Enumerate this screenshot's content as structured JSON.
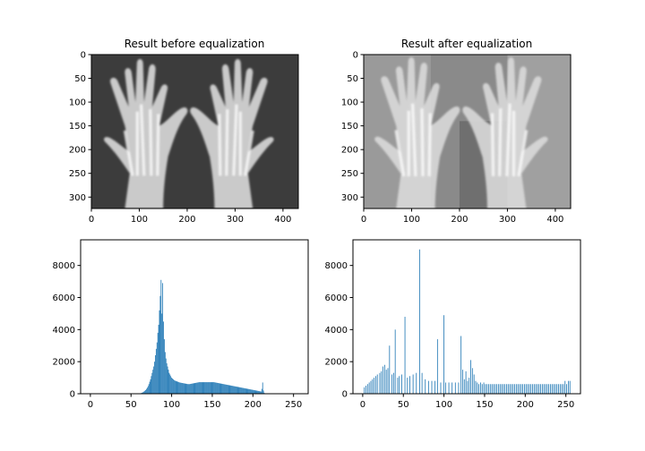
{
  "chart_data": [
    {
      "type": "image",
      "title": "Result before equalization",
      "xticks": [
        0,
        100,
        200,
        300,
        400
      ],
      "yticks": [
        0,
        50,
        100,
        150,
        200,
        250,
        300
      ],
      "xlim": [
        0,
        432
      ],
      "ylim": [
        324,
        0
      ],
      "image_content": "grayscale x-ray of two hands, low contrast"
    },
    {
      "type": "image",
      "title": "Result after equalization",
      "xticks": [
        0,
        100,
        200,
        300,
        400
      ],
      "yticks": [
        0,
        50,
        100,
        150,
        200,
        250,
        300
      ],
      "xlim": [
        0,
        432
      ],
      "ylim": [
        324,
        0
      ],
      "image_content": "grayscale x-ray of two hands, histogram-equalized, high contrast"
    },
    {
      "type": "bar",
      "title": "",
      "xlabel": "",
      "ylabel": "",
      "xticks": [
        0,
        50,
        100,
        150,
        200,
        250
      ],
      "yticks": [
        0,
        2000,
        4000,
        6000,
        8000
      ],
      "xlim": [
        -12,
        268
      ],
      "ylim": [
        0,
        9600
      ],
      "color": "#1f77b4",
      "start_bin": 60,
      "values": [
        10,
        20,
        30,
        50,
        70,
        100,
        140,
        180,
        230,
        300,
        380,
        480,
        600,
        750,
        900,
        1100,
        1300,
        1500,
        1700,
        2000,
        2400,
        2800,
        3200,
        3800,
        4300,
        5200,
        6100,
        7100,
        5000,
        6900,
        4500,
        3400,
        2600,
        2200,
        1900,
        1700,
        1500,
        1300,
        1200,
        1100,
        1000,
        950,
        900,
        850,
        820,
        800,
        780,
        760,
        740,
        720,
        700,
        690,
        680,
        670,
        660,
        650,
        640,
        630,
        620,
        610,
        600,
        600,
        600,
        610,
        620,
        630,
        640,
        650,
        660,
        670,
        680,
        690,
        700,
        710,
        720,
        720,
        720,
        720,
        720,
        720,
        720,
        720,
        720,
        720,
        720,
        720,
        720,
        720,
        720,
        720,
        720,
        720,
        720,
        710,
        700,
        690,
        680,
        670,
        660,
        650,
        640,
        630,
        620,
        610,
        600,
        590,
        580,
        570,
        560,
        550,
        540,
        530,
        520,
        510,
        500,
        490,
        480,
        470,
        460,
        450,
        440,
        430,
        420,
        410,
        400,
        390,
        380,
        370,
        360,
        350,
        340,
        330,
        320,
        310,
        300,
        290,
        280,
        270,
        260,
        250,
        240,
        230,
        220,
        210,
        200,
        190,
        180,
        170,
        160,
        150,
        140,
        300,
        700,
        200,
        50
      ]
    },
    {
      "type": "bar",
      "title": "",
      "xlabel": "",
      "ylabel": "",
      "xticks": [
        0,
        50,
        100,
        150,
        200,
        250
      ],
      "yticks": [
        0,
        2000,
        4000,
        6000,
        8000
      ],
      "xlim": [
        -12,
        268
      ],
      "ylim": [
        0,
        9600
      ],
      "color": "#1f77b4",
      "bars": [
        [
          2,
          400
        ],
        [
          4,
          500
        ],
        [
          6,
          600
        ],
        [
          8,
          700
        ],
        [
          10,
          800
        ],
        [
          12,
          900
        ],
        [
          14,
          1000
        ],
        [
          16,
          1100
        ],
        [
          18,
          1200
        ],
        [
          21,
          1300
        ],
        [
          23,
          1400
        ],
        [
          25,
          1700
        ],
        [
          27,
          1800
        ],
        [
          29,
          1500
        ],
        [
          31,
          1600
        ],
        [
          33,
          3000
        ],
        [
          36,
          1200
        ],
        [
          38,
          1300
        ],
        [
          40,
          4000
        ],
        [
          43,
          1000
        ],
        [
          45,
          1100
        ],
        [
          48,
          1200
        ],
        [
          52,
          4800
        ],
        [
          55,
          1000
        ],
        [
          58,
          1100
        ],
        [
          62,
          1200
        ],
        [
          66,
          1300
        ],
        [
          70,
          9000
        ],
        [
          73,
          1300
        ],
        [
          77,
          900
        ],
        [
          81,
          800
        ],
        [
          85,
          800
        ],
        [
          89,
          800
        ],
        [
          92,
          3400
        ],
        [
          96,
          700
        ],
        [
          100,
          4900
        ],
        [
          102,
          700
        ],
        [
          106,
          700
        ],
        [
          110,
          700
        ],
        [
          114,
          700
        ],
        [
          118,
          700
        ],
        [
          121,
          3600
        ],
        [
          123,
          1500
        ],
        [
          125,
          900
        ],
        [
          127,
          1400
        ],
        [
          129,
          800
        ],
        [
          131,
          1000
        ],
        [
          133,
          2100
        ],
        [
          135,
          1600
        ],
        [
          137,
          1200
        ],
        [
          139,
          800
        ],
        [
          141,
          700
        ],
        [
          143,
          600
        ],
        [
          145,
          700
        ],
        [
          147,
          600
        ],
        [
          149,
          700
        ],
        [
          151,
          600
        ],
        [
          153,
          600
        ],
        [
          155,
          600
        ],
        [
          157,
          600
        ],
        [
          159,
          600
        ],
        [
          161,
          600
        ],
        [
          163,
          600
        ],
        [
          165,
          600
        ],
        [
          167,
          600
        ],
        [
          169,
          600
        ],
        [
          171,
          600
        ],
        [
          173,
          600
        ],
        [
          175,
          600
        ],
        [
          177,
          600
        ],
        [
          179,
          600
        ],
        [
          181,
          600
        ],
        [
          183,
          600
        ],
        [
          185,
          600
        ],
        [
          187,
          600
        ],
        [
          189,
          600
        ],
        [
          191,
          600
        ],
        [
          193,
          600
        ],
        [
          195,
          600
        ],
        [
          197,
          600
        ],
        [
          199,
          600
        ],
        [
          201,
          600
        ],
        [
          203,
          600
        ],
        [
          205,
          600
        ],
        [
          207,
          600
        ],
        [
          209,
          600
        ],
        [
          211,
          600
        ],
        [
          213,
          600
        ],
        [
          215,
          600
        ],
        [
          217,
          600
        ],
        [
          219,
          600
        ],
        [
          221,
          600
        ],
        [
          223,
          600
        ],
        [
          225,
          600
        ],
        [
          227,
          600
        ],
        [
          229,
          600
        ],
        [
          231,
          600
        ],
        [
          233,
          600
        ],
        [
          235,
          600
        ],
        [
          237,
          600
        ],
        [
          239,
          600
        ],
        [
          241,
          600
        ],
        [
          243,
          600
        ],
        [
          245,
          600
        ],
        [
          247,
          600
        ],
        [
          249,
          800
        ],
        [
          251,
          600
        ],
        [
          253,
          800
        ],
        [
          255,
          800
        ]
      ]
    }
  ]
}
